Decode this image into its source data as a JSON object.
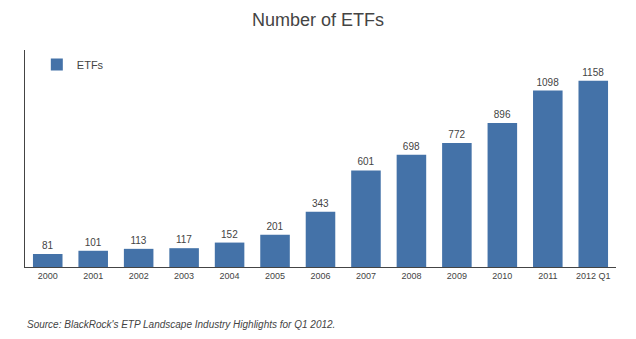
{
  "chart_data": {
    "type": "bar",
    "title": "Number of ETFs",
    "categories": [
      "2000",
      "2001",
      "2002",
      "2003",
      "2004",
      "2005",
      "2006",
      "2007",
      "2008",
      "2009",
      "2010",
      "2011",
      "2012 Q1"
    ],
    "series": [
      {
        "name": "ETFs",
        "color": "#4472a8",
        "values": [
          81,
          101,
          113,
          117,
          152,
          201,
          343,
          601,
          698,
          772,
          896,
          1098,
          1158
        ]
      }
    ],
    "ylim": [
      0,
      1350
    ],
    "tick_labels": "x",
    "grid": false,
    "legend": "upper left",
    "data_labels": true,
    "annotations": [
      "Source: BlackRock's ETP Landscape Industry Highlights for Q1 2012."
    ]
  }
}
